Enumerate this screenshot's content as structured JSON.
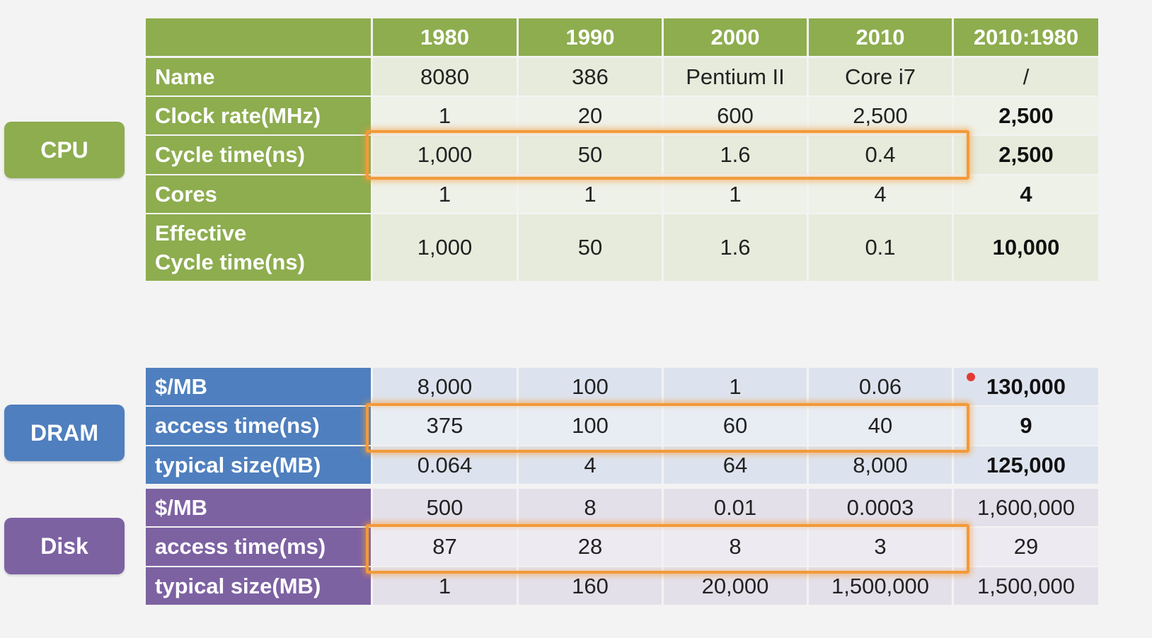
{
  "header": [
    "",
    "1980",
    "1990",
    "2000",
    "2010",
    "2010:1980"
  ],
  "sections": {
    "cpu": {
      "label": "CPU",
      "rows": [
        [
          "Name",
          "8080",
          "386",
          "Pentium II",
          "Core i7",
          "/"
        ],
        [
          "Clock rate(MHz)",
          "1",
          "20",
          "600",
          "2,500",
          "2,500"
        ],
        [
          "Cycle time(ns)",
          "1,000",
          "50",
          "1.6",
          "0.4",
          "2,500"
        ],
        [
          "Cores",
          "1",
          "1",
          "1",
          "4",
          "4"
        ],
        [
          "Effective\nCycle time(ns)",
          "1,000",
          "50",
          "1.6",
          "0.1",
          "10,000"
        ]
      ]
    },
    "dram": {
      "label": "DRAM",
      "rows": [
        [
          "$/MB",
          "8,000",
          "100",
          "1",
          "0.06",
          "130,000"
        ],
        [
          "access time(ns)",
          "375",
          "100",
          "60",
          "40",
          "9"
        ],
        [
          "typical size(MB)",
          "0.064",
          "4",
          "64",
          "8,000",
          "125,000"
        ]
      ]
    },
    "disk": {
      "label": "Disk",
      "rows": [
        [
          "$/MB",
          "500",
          "8",
          "0.01",
          "0.0003",
          "1,600,000"
        ],
        [
          "access time(ms)",
          "87",
          "28",
          "8",
          "3",
          "29"
        ],
        [
          "typical size(MB)",
          "1",
          "160",
          "20,000",
          "1,500,000",
          "1,500,000"
        ]
      ]
    }
  },
  "colors": {
    "cpu": "#8dad4f",
    "dram": "#4f7fbe",
    "disk": "#7d62a2",
    "highlight": "#f29a3a"
  }
}
